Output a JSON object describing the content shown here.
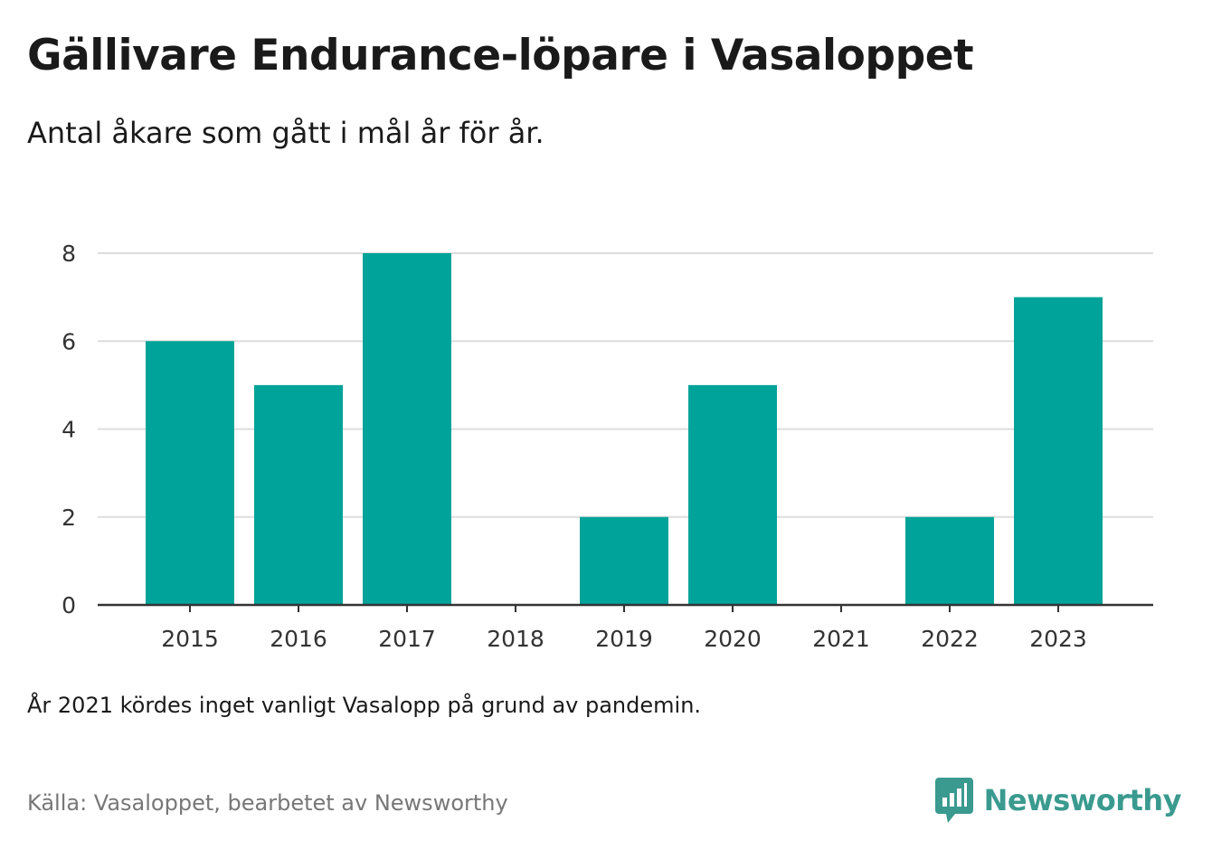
{
  "title": "Gällivare Endurance-löpare i Vasaloppet",
  "subtitle": "Antal åkare som gått i mål år för år.",
  "note": "År 2021 kördes inget vanligt Vasalopp på grund av pandemin.",
  "source": "Källa: Vasaloppet, bearbetet av Newsworthy",
  "brand": {
    "name": "Newsworthy",
    "color": "#3a9a8f",
    "icon": "newsworthy-logo-icon"
  },
  "colors": {
    "bar": "#00a399",
    "grid": "#dddddd",
    "axis": "#333333",
    "text": "#333333"
  },
  "chart_data": {
    "type": "bar",
    "categories": [
      "2015",
      "2016",
      "2017",
      "2018",
      "2019",
      "2020",
      "2021",
      "2022",
      "2023"
    ],
    "values": [
      6,
      5,
      8,
      0,
      2,
      5,
      0,
      2,
      7
    ],
    "yticks": [
      0,
      2,
      4,
      6,
      8
    ],
    "ylim": [
      0,
      8
    ],
    "grid": true,
    "legend": "none"
  }
}
